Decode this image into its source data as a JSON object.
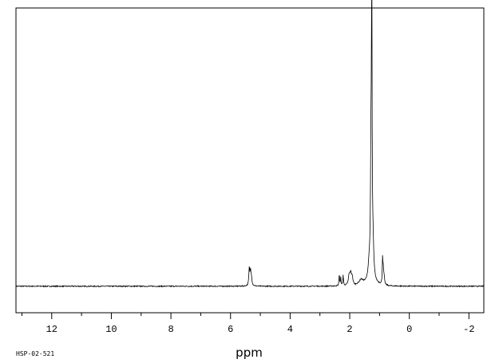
{
  "chart_data": {
    "type": "line",
    "xlabel": "ppm",
    "ylabel": "",
    "title": "",
    "code_label": "HSP-02-521",
    "xlim": [
      13.2,
      -2.5
    ],
    "ylim": [
      -0.1,
      1.05
    ],
    "x_reversed": true,
    "grid": false,
    "baseline": 0,
    "major_ticks": [
      12,
      10,
      8,
      6,
      4,
      2,
      0,
      -2
    ],
    "tick_labels": [
      "12",
      "10",
      "8",
      "6",
      "4",
      "2",
      "0",
      "-2"
    ],
    "minor_ticks": [
      13,
      11,
      9,
      7,
      5,
      3,
      1,
      -1
    ],
    "peaks": [
      {
        "ppm": 5.37,
        "height": 0.065,
        "width": 0.018
      },
      {
        "ppm": 5.33,
        "height": 0.05,
        "width": 0.018
      },
      {
        "ppm": 5.3,
        "height": 0.03,
        "width": 0.02
      },
      {
        "ppm": 2.35,
        "height": 0.045,
        "width": 0.012
      },
      {
        "ppm": 2.3,
        "height": 0.03,
        "width": 0.012
      },
      {
        "ppm": 2.22,
        "height": 0.04,
        "width": 0.012
      },
      {
        "ppm": 2.02,
        "height": 0.035,
        "width": 0.03
      },
      {
        "ppm": 1.97,
        "height": 0.04,
        "width": 0.03
      },
      {
        "ppm": 1.92,
        "height": 0.03,
        "width": 0.03
      },
      {
        "ppm": 1.62,
        "height": 0.018,
        "width": 0.08
      },
      {
        "ppm": 1.35,
        "height": 0.055,
        "width": 0.04
      },
      {
        "ppm": 1.26,
        "height": 1.0,
        "width": 0.012
      },
      {
        "ppm": 1.285,
        "height": 0.48,
        "width": 0.02
      },
      {
        "ppm": 1.22,
        "height": 0.12,
        "width": 0.03
      },
      {
        "ppm": 0.9,
        "height": 0.085,
        "width": 0.01
      },
      {
        "ppm": 0.88,
        "height": 0.06,
        "width": 0.015
      },
      {
        "ppm": 0.85,
        "height": 0.03,
        "width": 0.02
      }
    ]
  }
}
